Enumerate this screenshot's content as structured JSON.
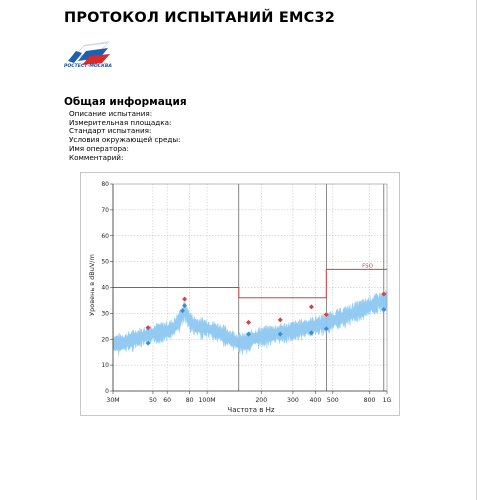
{
  "document": {
    "title": "ПРОТОКОЛ ИСПЫТАНИЙ EMC32",
    "logo": {
      "text": "РОСТЕСТ-МОСКВА",
      "icon": "rostest-flag-logo"
    },
    "section_title": "Общая информация",
    "info_fields": [
      "Описание испытания:",
      "Измерительная площадка:",
      "Стандарт испытания:",
      "Условия окружающей среды:",
      "Имя оператора:",
      "Комментарий:"
    ]
  },
  "chart_data": {
    "type": "line",
    "title": "",
    "xlabel": "Частота в Hz",
    "ylabel": "Уровень в dBuV/m",
    "x_scale": "log",
    "xlim": [
      30,
      1000
    ],
    "ylim": [
      0,
      80
    ],
    "grid": true,
    "x_ticks": [
      {
        "value": 30,
        "label": "30M"
      },
      {
        "value": 50,
        "label": "50"
      },
      {
        "value": 60,
        "label": "60"
      },
      {
        "value": 80,
        "label": "80"
      },
      {
        "value": 100,
        "label": "100M"
      },
      {
        "value": 200,
        "label": "200"
      },
      {
        "value": 300,
        "label": "300"
      },
      {
        "value": 400,
        "label": "400"
      },
      {
        "value": 500,
        "label": "500"
      },
      {
        "value": 800,
        "label": "800"
      },
      {
        "value": 1000,
        "label": "1G"
      }
    ],
    "y_ticks": [
      0,
      10,
      20,
      30,
      40,
      50,
      60,
      70,
      80
    ],
    "limit_line": {
      "label": "FSO",
      "color": "#d04040",
      "points": [
        [
          30,
          40
        ],
        [
          150,
          40
        ],
        [
          150,
          36
        ],
        [
          460,
          36
        ],
        [
          460,
          47
        ],
        [
          1000,
          47
        ]
      ]
    },
    "spectrum": {
      "color": "#8ec8f2",
      "points": [
        [
          30,
          18
        ],
        [
          35,
          18.5
        ],
        [
          40,
          20
        ],
        [
          45,
          21
        ],
        [
          50,
          22
        ],
        [
          55,
          22.5
        ],
        [
          60,
          23
        ],
        [
          65,
          24
        ],
        [
          70,
          27
        ],
        [
          75,
          31
        ],
        [
          80,
          27
        ],
        [
          85,
          25
        ],
        [
          90,
          24.5
        ],
        [
          100,
          24
        ],
        [
          110,
          23
        ],
        [
          120,
          22
        ],
        [
          135,
          20
        ],
        [
          150,
          18.5
        ],
        [
          165,
          18.5
        ],
        [
          180,
          20
        ],
        [
          200,
          21
        ],
        [
          250,
          22
        ],
        [
          300,
          23
        ],
        [
          400,
          25
        ],
        [
          500,
          27
        ],
        [
          600,
          29
        ],
        [
          700,
          31
        ],
        [
          800,
          32.5
        ],
        [
          900,
          34
        ],
        [
          1000,
          35
        ]
      ]
    },
    "marker_series": [
      {
        "color": "#d94040",
        "shape": "diamond",
        "points": [
          [
            47,
            24.5
          ],
          [
            75,
            35.5
          ],
          [
            170,
            26.5
          ],
          [
            255,
            27.5
          ],
          [
            380,
            32.5
          ],
          [
            460,
            29.5
          ],
          [
            960,
            37.5
          ]
        ]
      },
      {
        "color": "#3a8fd0",
        "shape": "diamond",
        "points": [
          [
            47,
            18.5
          ],
          [
            73,
            31
          ],
          [
            75,
            33
          ],
          [
            170,
            22
          ],
          [
            255,
            22
          ],
          [
            380,
            22.5
          ],
          [
            460,
            24
          ],
          [
            960,
            31.5
          ]
        ]
      }
    ],
    "vertical_markers": [
      150,
      460,
      960
    ]
  }
}
